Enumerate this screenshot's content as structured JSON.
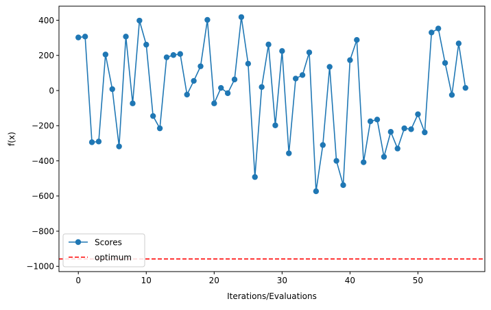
{
  "chart_data": {
    "type": "line",
    "title": "",
    "xlabel": "Iterations/Evaluations",
    "ylabel": "f(x)",
    "xlim": [
      -2.85,
      59.85
    ],
    "ylim": [
      -1030,
      480
    ],
    "xticks": [
      0,
      10,
      20,
      30,
      40,
      50
    ],
    "yticks": [
      -1000,
      -800,
      -600,
      -400,
      -200,
      0,
      200,
      400
    ],
    "xtick_labels": [
      "0",
      "10",
      "20",
      "30",
      "40",
      "50"
    ],
    "ytick_labels": [
      "−1000",
      "−800",
      "−600",
      "−400",
      "−200",
      "0",
      "200",
      "400"
    ],
    "grid": false,
    "legend_position": "lower-left",
    "series": [
      {
        "name": "Scores",
        "color": "#1f77b4",
        "marker": "circle",
        "x": [
          0,
          1,
          2,
          3,
          4,
          5,
          6,
          7,
          8,
          9,
          10,
          11,
          12,
          13,
          14,
          15,
          16,
          17,
          18,
          19,
          20,
          21,
          22,
          23,
          24,
          25,
          26,
          27,
          28,
          29,
          30,
          31,
          32,
          33,
          34,
          35,
          36,
          37,
          38,
          39,
          40,
          41,
          42,
          43,
          44,
          45,
          46,
          47,
          48,
          49,
          50,
          51,
          52,
          53,
          54,
          55,
          56,
          57
        ],
        "values": [
          302,
          307,
          -294,
          -290,
          205,
          8,
          -318,
          307,
          -73,
          398,
          261,
          -145,
          -215,
          189,
          202,
          208,
          -23,
          55,
          138,
          402,
          -73,
          15,
          -15,
          63,
          418,
          153,
          -492,
          20,
          262,
          -198,
          225,
          -357,
          68,
          88,
          217,
          -573,
          -310,
          135,
          -400,
          -538,
          173,
          288,
          -408,
          -175,
          -165,
          -377,
          -235,
          -330,
          -215,
          -220,
          -135,
          -238,
          330,
          353,
          157,
          -25,
          268,
          15
        ]
      }
    ],
    "reference_lines": [
      {
        "name": "optimum",
        "orientation": "horizontal",
        "y": -958,
        "color": "#ff0000",
        "style": "dashed"
      }
    ]
  }
}
